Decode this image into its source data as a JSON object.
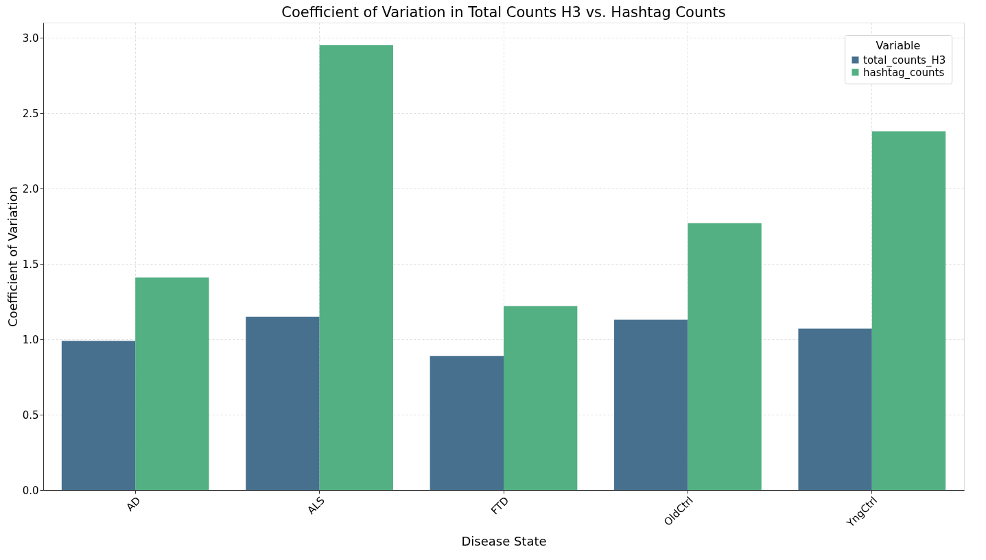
{
  "chart_data": {
    "type": "bar",
    "title": "Coefficient of Variation in Total Counts H3 vs. Hashtag Counts",
    "xlabel": "Disease State",
    "ylabel": "Coefficient of Variation",
    "legend_title": "Variable",
    "categories": [
      "AD",
      "ALS",
      "FTD",
      "OldCtrl",
      "YngCtrl"
    ],
    "series": [
      {
        "name": "total_counts_H3",
        "color": "#46708e",
        "values": [
          0.99,
          1.15,
          0.89,
          1.13,
          1.07
        ]
      },
      {
        "name": "hashtag_counts",
        "color": "#52b083",
        "values": [
          1.41,
          2.95,
          1.22,
          1.77,
          2.38
        ]
      }
    ],
    "ylim": [
      0,
      3.1
    ],
    "yticks": [
      {
        "value": 0,
        "label": "0.0"
      },
      0.5,
      {
        "value": 1,
        "label": "1.0"
      },
      1.5,
      {
        "value": 2,
        "label": "2.0"
      },
      2.5,
      {
        "value": 3,
        "label": "3.0"
      }
    ],
    "grid": true,
    "legend": "top right"
  }
}
